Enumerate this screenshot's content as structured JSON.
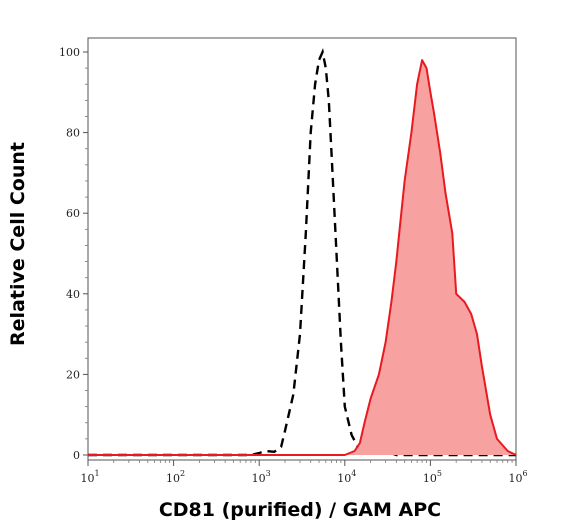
{
  "chart_data": {
    "type": "area",
    "xlabel": "CD81 (purified) / GAM APC",
    "ylabel": "Relative Cell Count",
    "x_scale": "log",
    "xlim": [
      10.0,
      1000000.0
    ],
    "ylim": [
      0,
      100
    ],
    "x_tick_labels": [
      {
        "base": "10",
        "exp": "1"
      },
      {
        "base": "10",
        "exp": "2"
      },
      {
        "base": "10",
        "exp": "3"
      },
      {
        "base": "10",
        "exp": "4"
      },
      {
        "base": "10",
        "exp": "5"
      },
      {
        "base": "10",
        "exp": "6"
      }
    ],
    "y_ticks": [
      0,
      20,
      40,
      60,
      80,
      100
    ],
    "grid": false,
    "series": [
      {
        "style": "dashed",
        "color": "#000000",
        "x": [
          10,
          100,
          800,
          1000,
          1200,
          1500,
          1800,
          2000,
          2500,
          3000,
          3500,
          4000,
          4500,
          5000,
          5500,
          6000,
          6500,
          7000,
          8000,
          9000,
          10000,
          12000,
          15000,
          18000,
          20000,
          25000,
          30000,
          40000,
          100000,
          1000000
        ],
        "y": [
          0,
          0,
          0,
          0.5,
          1,
          0.8,
          2,
          6,
          15,
          30,
          55,
          80,
          92,
          98,
          100,
          96,
          88,
          75,
          50,
          28,
          12,
          5,
          1,
          3,
          1,
          0.5,
          1,
          0,
          0,
          0
        ]
      },
      {
        "style": "filled",
        "color": "#e8191f",
        "fill": "#f7a1a1",
        "x": [
          10,
          1000,
          10000,
          13000,
          15000,
          17000,
          20000,
          25000,
          30000,
          35000,
          40000,
          50000,
          60000,
          70000,
          80000,
          90000,
          100000,
          110000,
          130000,
          150000,
          180000,
          200000,
          250000,
          300000,
          350000,
          400000,
          500000,
          600000,
          800000,
          1000000
        ],
        "y": [
          0,
          0,
          0,
          1,
          3,
          8,
          14,
          20,
          28,
          38,
          48,
          68,
          80,
          92,
          98,
          96,
          90,
          85,
          75,
          65,
          55,
          40,
          38,
          35,
          30,
          22,
          10,
          4,
          1,
          0
        ]
      }
    ]
  }
}
